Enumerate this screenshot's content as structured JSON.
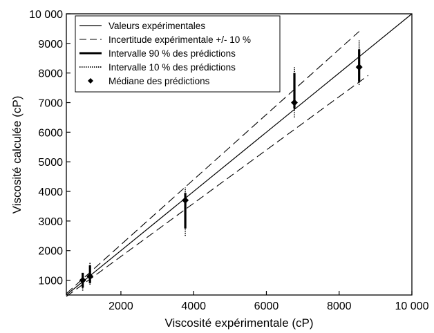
{
  "chart_data": {
    "type": "scatter",
    "title": "",
    "xlabel": "Viscosité expérimentale (cP)",
    "ylabel": "Viscosité calculée (cP)",
    "xlim": [
      500,
      10000
    ],
    "ylim": [
      500,
      10000
    ],
    "xticks": [
      {
        "value": 2000,
        "label": "2000"
      },
      {
        "value": 4000,
        "label": "4000"
      },
      {
        "value": 6000,
        "label": "6000"
      },
      {
        "value": 8000,
        "label": "8000"
      },
      {
        "value": 10000,
        "label": "10 000"
      }
    ],
    "yticks": [
      {
        "value": 1000,
        "label": "1000"
      },
      {
        "value": 2000,
        "label": "2000"
      },
      {
        "value": 3000,
        "label": "3000"
      },
      {
        "value": 4000,
        "label": "4000"
      },
      {
        "value": 5000,
        "label": "5000"
      },
      {
        "value": 6000,
        "label": "6000"
      },
      {
        "value": 7000,
        "label": "7000"
      },
      {
        "value": 8000,
        "label": "8000"
      },
      {
        "value": 9000,
        "label": "9000"
      },
      {
        "value": 10000,
        "label": "10 000"
      }
    ],
    "grid": false,
    "legend_position": "top-left",
    "legend": [
      {
        "label": "Valeurs expérimentales",
        "style": "solid-thin"
      },
      {
        "label": "Incertitude expérimentale +/- 10 %",
        "style": "dashed"
      },
      {
        "label": "Intervalle 90 % des prédictions",
        "style": "solid-thick"
      },
      {
        "label": "Intervalle 10 % des prédictions",
        "style": "dotted"
      },
      {
        "label": "Médiane des prédictions",
        "style": "diamond"
      }
    ],
    "reference_lines": {
      "identity": {
        "x": [
          500,
          10000
        ]
      },
      "upper_10pct": {
        "factor": 1.1,
        "x": [
          500,
          8550
        ]
      },
      "lower_10pct": {
        "factor": 0.9,
        "x": [
          500,
          8800
        ]
      }
    },
    "points": [
      {
        "x": 950,
        "median": 1000,
        "interval_90": [
          750,
          1250
        ],
        "interval_10": [
          650,
          1280
        ]
      },
      {
        "x": 1150,
        "median": 1130,
        "interval_90": [
          900,
          1500
        ],
        "interval_10": [
          850,
          1620
        ]
      },
      {
        "x": 3770,
        "median": 3700,
        "interval_90": [
          2750,
          3950
        ],
        "interval_10": [
          2500,
          4130
        ]
      },
      {
        "x": 6770,
        "median": 7000,
        "interval_90": [
          6800,
          8000
        ],
        "interval_10": [
          6500,
          8200
        ]
      },
      {
        "x": 8550,
        "median": 8200,
        "interval_90": [
          7700,
          8800
        ],
        "interval_10": [
          7600,
          9100
        ]
      }
    ],
    "colors": {
      "line": "#000000",
      "marker": "#000000"
    }
  }
}
